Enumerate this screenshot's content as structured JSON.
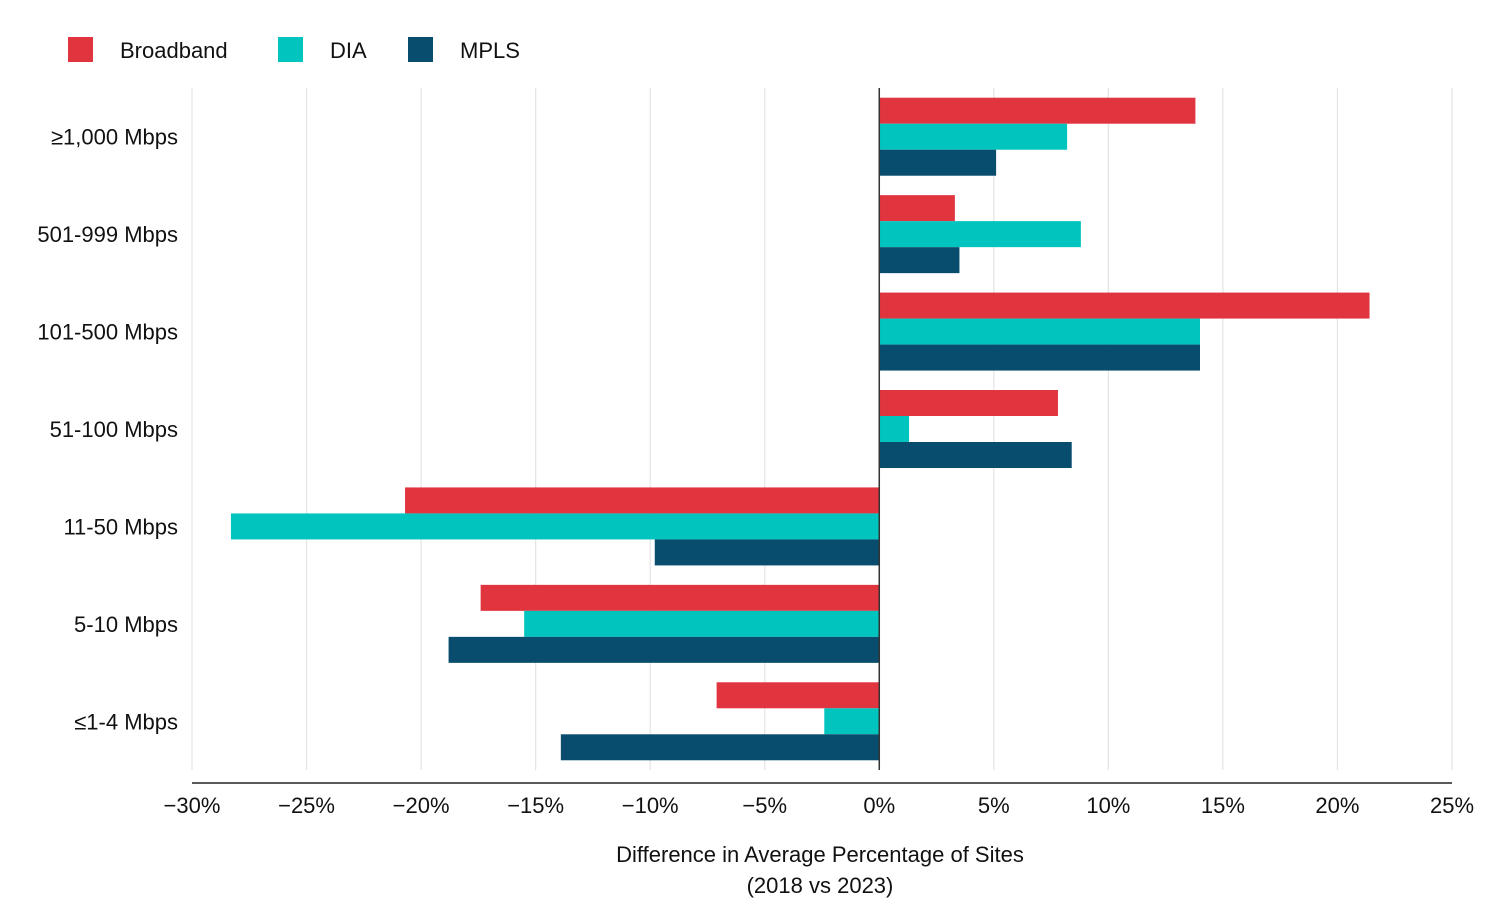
{
  "chart_data": {
    "type": "bar",
    "orientation": "horizontal",
    "categories": [
      "≥1,000 Mbps",
      "501-999 Mbps",
      "101-500 Mbps",
      "51-100 Mbps",
      "11-50 Mbps",
      "5-10 Mbps",
      "≤1-4 Mbps"
    ],
    "series": [
      {
        "name": "Broadband",
        "color": "#e0343f",
        "values": [
          13.8,
          3.3,
          21.4,
          7.8,
          -20.7,
          -17.4,
          -7.1
        ]
      },
      {
        "name": "DIA",
        "color": "#00c4bd",
        "values": [
          8.2,
          8.8,
          14.0,
          1.3,
          -28.3,
          -15.5,
          -2.4
        ]
      },
      {
        "name": "MPLS",
        "color": "#094d6e",
        "values": [
          5.1,
          3.5,
          14.0,
          8.4,
          -9.8,
          -18.8,
          -13.9
        ]
      }
    ],
    "xlim": [
      -30,
      25
    ],
    "xticks": [
      -30,
      -25,
      -20,
      -15,
      -10,
      -5,
      0,
      5,
      10,
      15,
      20,
      25
    ],
    "xtick_labels": [
      "−30%",
      "−25%",
      "−20%",
      "−15%",
      "−10%",
      "−5%",
      "0%",
      "5%",
      "10%",
      "15%",
      "20%",
      "25%"
    ],
    "xlabel_line1": "Difference in Average Percentage of Sites",
    "xlabel_line2": "(2018 vs 2023)",
    "ylabel": "",
    "grid": true,
    "legend_position": "top-left"
  }
}
